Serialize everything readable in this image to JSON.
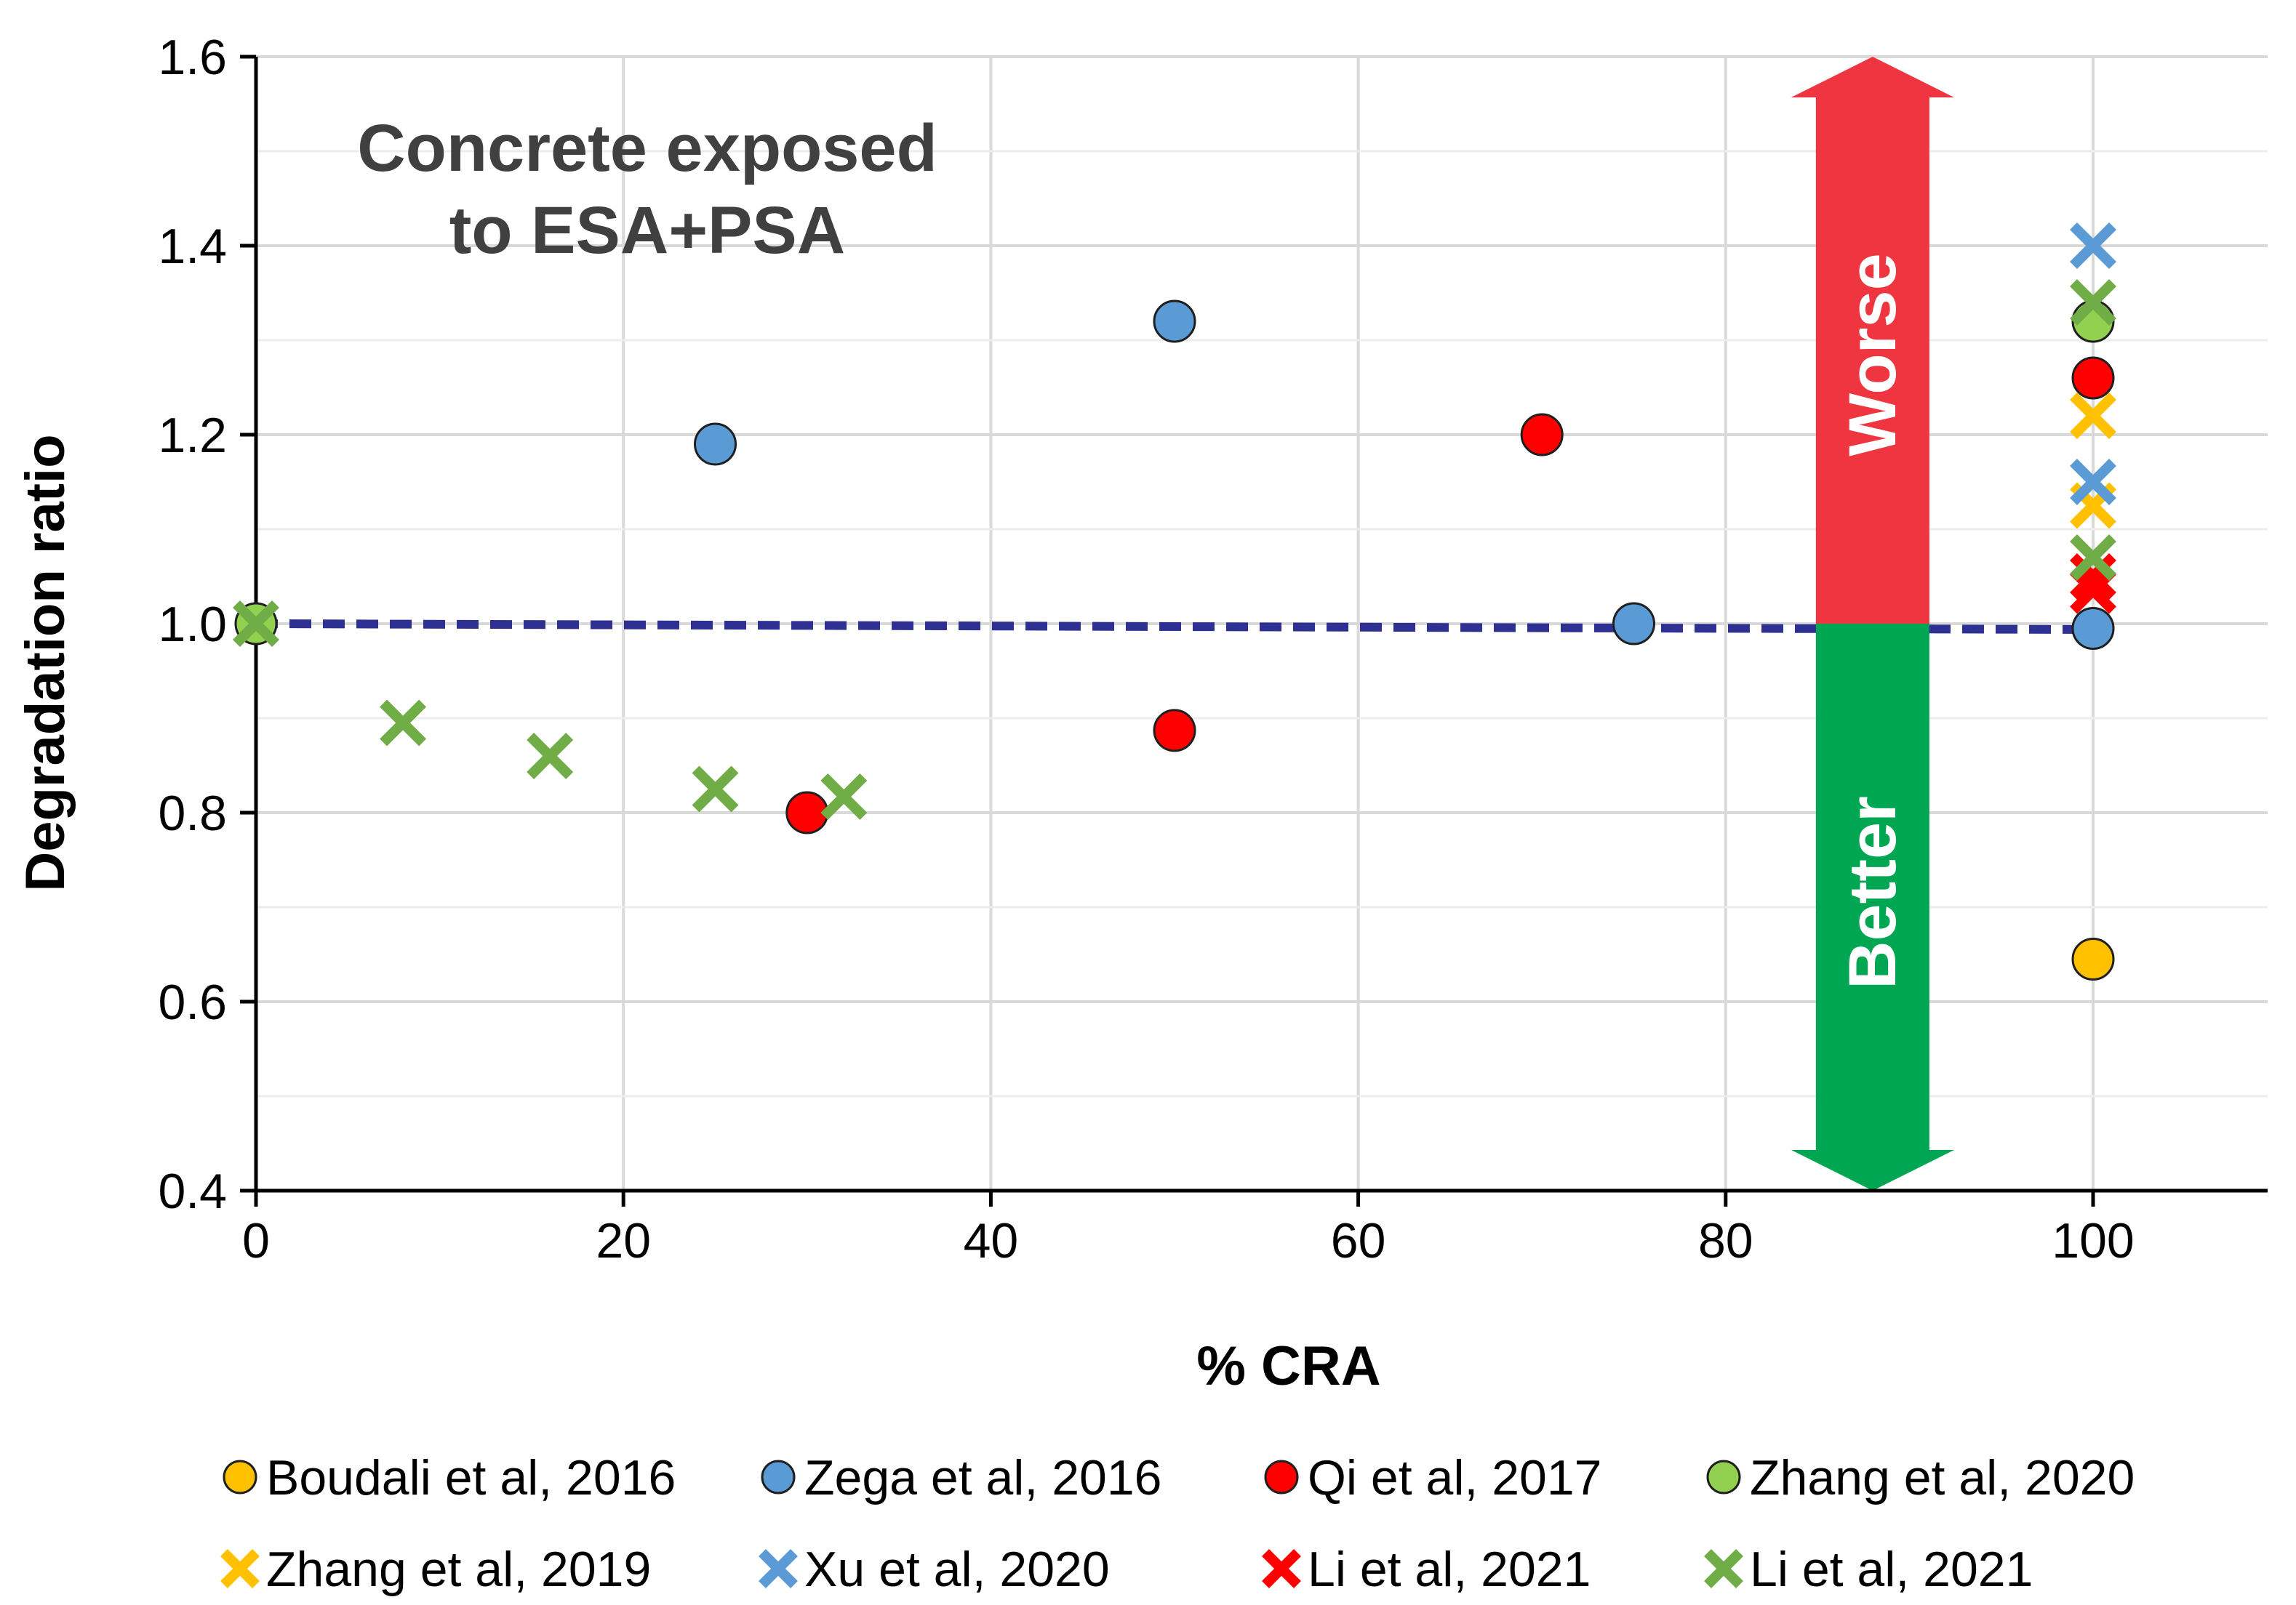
{
  "chart_data": {
    "type": "scatter",
    "title": "",
    "xlabel": "% CRA",
    "ylabel": "Degradation ratio",
    "xlim": [
      0,
      110
    ],
    "ylim": [
      0.4,
      1.6
    ],
    "xticks": [
      0,
      20,
      40,
      60,
      80,
      100
    ],
    "yticks": [
      0.4,
      0.6,
      0.8,
      1.0,
      1.2,
      1.4,
      1.6
    ],
    "xtick_labels": [
      "0",
      "20",
      "40",
      "60",
      "80",
      "100"
    ],
    "ytick_labels": [
      "0.4",
      "0.6",
      "0.8",
      "1.0",
      "1.2",
      "1.4",
      "1.6"
    ],
    "grid": true,
    "legend_position": "bottom",
    "annotation": [
      "Concrete exposed",
      "to ESA+PSA"
    ],
    "reference_line": {
      "y": 1.0,
      "style": "dashed",
      "color": "#2E3192"
    },
    "arrows": {
      "x_position": 88,
      "worse": {
        "label": "Worse",
        "from": 1.0,
        "to": 1.6,
        "color": "#EE3540"
      },
      "better": {
        "label": "Better",
        "from": 1.0,
        "to": 0.4,
        "color": "#00A651"
      }
    },
    "series": [
      {
        "name": "Boudali et al, 2016",
        "marker": "circle",
        "color": "#FFC000",
        "points": [
          [
            100,
            0.645
          ]
        ]
      },
      {
        "name": "Zega et al, 2016",
        "marker": "circle",
        "color": "#5B9BD5",
        "points": [
          [
            25,
            1.19
          ],
          [
            50,
            1.32
          ],
          [
            75,
            1.0
          ],
          [
            100,
            0.995
          ]
        ]
      },
      {
        "name": "Qi et al, 2017",
        "marker": "circle",
        "color": "#FF0000",
        "points": [
          [
            30,
            0.8
          ],
          [
            50,
            0.887
          ],
          [
            70,
            1.2
          ],
          [
            100,
            1.26
          ]
        ]
      },
      {
        "name": "Zhang et al, 2020",
        "marker": "circle",
        "color": "#92D050",
        "points": [
          [
            0,
            1.0
          ],
          [
            100,
            1.32
          ]
        ]
      },
      {
        "name": "Zhang et al, 2019",
        "marker": "x",
        "color": "#FFC000",
        "points": [
          [
            100,
            1.22
          ],
          [
            100,
            1.125
          ]
        ]
      },
      {
        "name": "Xu et al, 2020",
        "marker": "x",
        "color": "#5B9BD5",
        "points": [
          [
            100,
            1.4
          ],
          [
            100,
            1.15
          ]
        ]
      },
      {
        "name": "Li et al, 2021",
        "marker": "x",
        "color": "#FF0000",
        "points": [
          [
            100,
            1.05
          ],
          [
            100,
            1.035
          ]
        ]
      },
      {
        "name": "Li et al, 2021",
        "marker": "x",
        "color": "#70AD47",
        "points": [
          [
            0,
            1.0
          ],
          [
            8,
            0.895
          ],
          [
            16,
            0.86
          ],
          [
            25,
            0.825
          ],
          [
            32,
            0.817
          ],
          [
            100,
            1.34
          ],
          [
            100,
            1.07
          ]
        ]
      }
    ]
  }
}
